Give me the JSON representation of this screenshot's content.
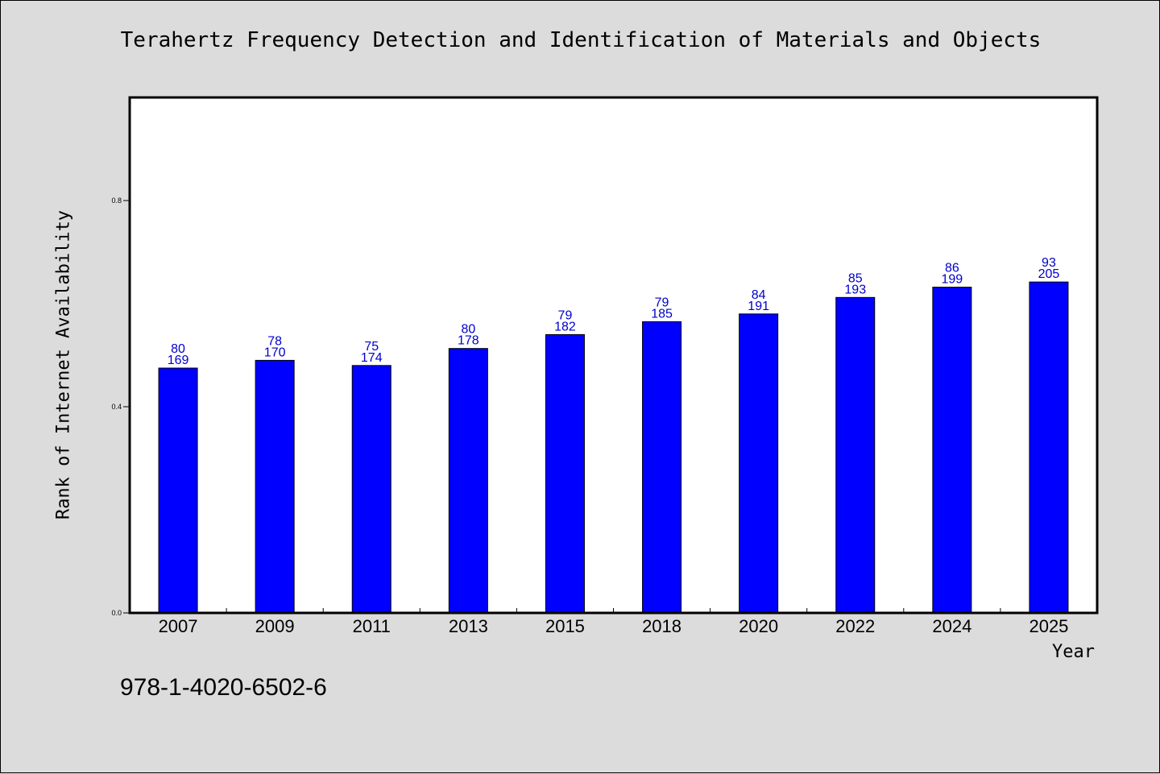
{
  "chart_data": {
    "type": "bar",
    "title": "Terahertz Frequency Detection and Identification of Materials and Objects",
    "xlabel": "Year",
    "ylabel": "Rank of Internet Availability",
    "categories": [
      "2007",
      "2009",
      "2011",
      "2013",
      "2015",
      "2018",
      "2020",
      "2022",
      "2024",
      "2025"
    ],
    "values": [
      0.475,
      0.49,
      0.48,
      0.513,
      0.54,
      0.565,
      0.58,
      0.612,
      0.632,
      0.642
    ],
    "labels_top": [
      "80",
      "78",
      "75",
      "80",
      "79",
      "79",
      "84",
      "85",
      "86",
      "93"
    ],
    "labels_bottom": [
      "169",
      "170",
      "174",
      "178",
      "182",
      "185",
      "191",
      "193",
      "199",
      "205"
    ],
    "ylim": [
      0,
      1.0
    ],
    "yticks": [
      0.0,
      0.4,
      0.8
    ],
    "ytick_labels": [
      "0.0",
      "0.4",
      "0.8"
    ],
    "grid": false,
    "colors": {
      "bar": "#0000ff",
      "label": "#0000cc",
      "background": "#dcdcdc",
      "plot_bg": "#ffffff"
    }
  },
  "footer": {
    "isbn": "978-1-4020-6502-6"
  }
}
